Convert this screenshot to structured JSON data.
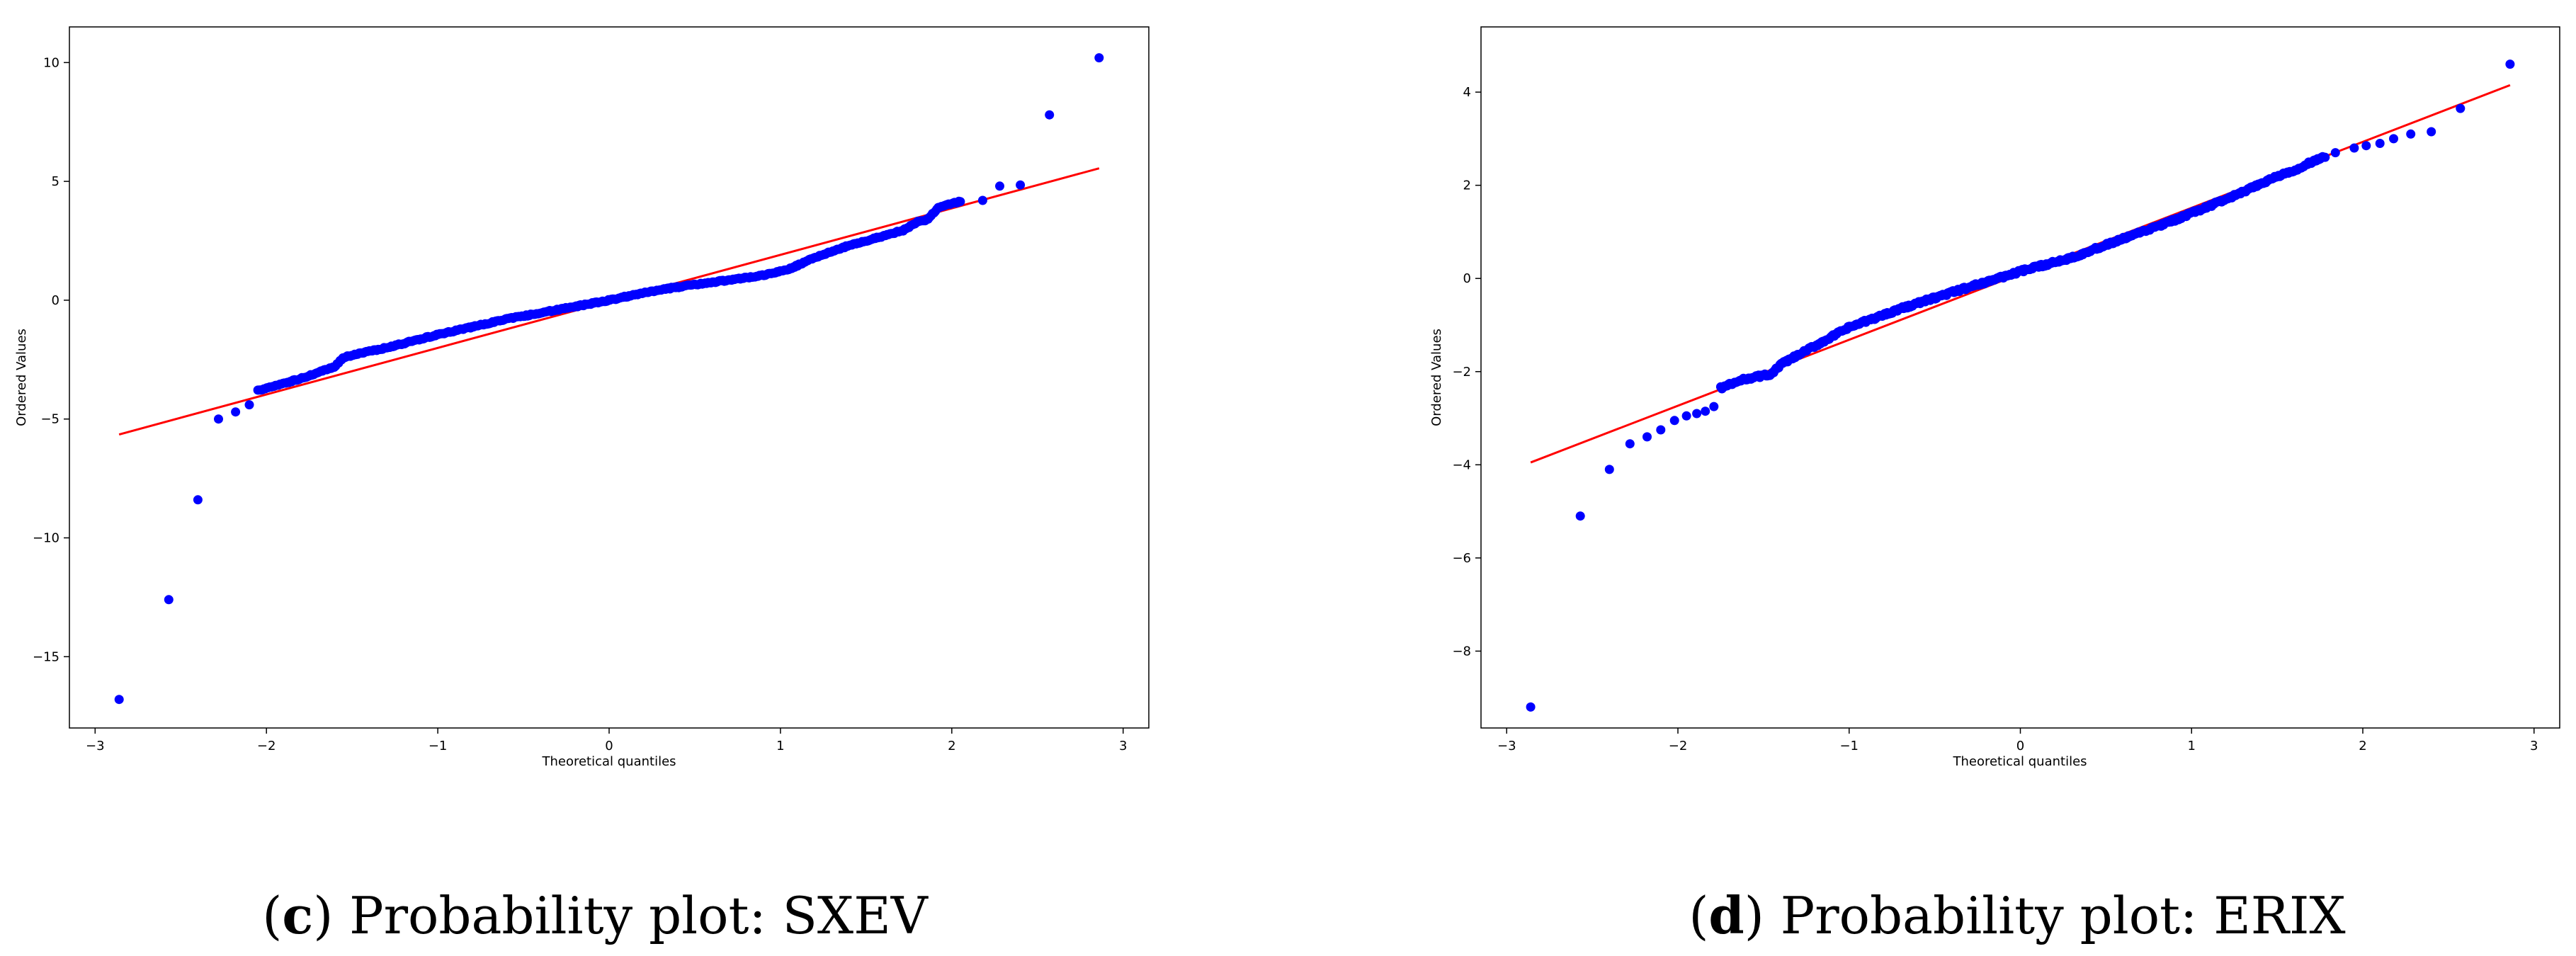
{
  "chart_data": [
    {
      "type": "scatter",
      "xlabel": "Theoretical quantiles",
      "ylabel": "Ordered Values",
      "xlim": [
        -3.15,
        3.15
      ],
      "ylim": [
        -18.0,
        11.5
      ],
      "xticks": [
        -3,
        -2,
        -1,
        0,
        1,
        2,
        3
      ],
      "xtick_labels": [
        "−3",
        "−2",
        "−1",
        "0",
        "1",
        "2",
        "3"
      ],
      "yticks": [
        -15,
        -10,
        -5,
        0,
        5,
        10
      ],
      "ytick_labels": [
        "−15",
        "−10",
        "−5",
        "0",
        "5",
        "10"
      ],
      "fit_line": {
        "x": [
          -2.86,
          2.86
        ],
        "y": [
          -5.65,
          5.55
        ],
        "color": "#ff0000"
      },
      "marker_color": "#0000ff",
      "outliers": [
        {
          "x": -2.86,
          "y": -16.8
        },
        {
          "x": -2.57,
          "y": -12.6
        },
        {
          "x": -2.4,
          "y": -8.4
        },
        {
          "x": -2.28,
          "y": -5.0
        },
        {
          "x": -2.18,
          "y": -4.7
        },
        {
          "x": -2.1,
          "y": -4.4
        },
        {
          "x": 2.18,
          "y": 4.2
        },
        {
          "x": 2.28,
          "y": 4.8
        },
        {
          "x": 2.4,
          "y": 4.85
        },
        {
          "x": 2.57,
          "y": 7.8
        },
        {
          "x": 2.86,
          "y": 10.2
        }
      ],
      "body_curve": {
        "x": [
          -2.05,
          -1.8,
          -1.6,
          -1.55,
          -1.3,
          -1.0,
          -0.6,
          -0.3,
          0.0,
          0.3,
          0.6,
          0.9,
          1.05,
          1.2,
          1.4,
          1.6,
          1.72,
          1.8,
          1.86,
          1.92,
          2.05
        ],
        "y": [
          -3.8,
          -3.3,
          -2.8,
          -2.4,
          -2.0,
          -1.45,
          -0.8,
          -0.4,
          0.0,
          0.45,
          0.75,
          1.05,
          1.3,
          1.8,
          2.3,
          2.7,
          2.95,
          3.3,
          3.4,
          3.9,
          4.15
        ]
      },
      "caption": {
        "label": "c",
        "text": "Probability plot: SXEV"
      }
    },
    {
      "type": "scatter",
      "xlabel": "Theoretical quantiles",
      "ylabel": "Ordered Values",
      "xlim": [
        -3.15,
        3.15
      ],
      "ylim": [
        -9.65,
        5.4
      ],
      "xticks": [
        -3,
        -2,
        -1,
        0,
        1,
        2,
        3
      ],
      "xtick_labels": [
        "−3",
        "−2",
        "−1",
        "0",
        "1",
        "2",
        "3"
      ],
      "yticks": [
        -8,
        -6,
        -4,
        -2,
        0,
        2,
        4
      ],
      "ytick_labels": [
        "−8",
        "−6",
        "−4",
        "−2",
        "0",
        "2",
        "4"
      ],
      "fit_line": {
        "x": [
          -2.86,
          2.86
        ],
        "y": [
          -3.95,
          4.15
        ],
        "color": "#ff0000"
      },
      "marker_color": "#0000ff",
      "outliers": [
        {
          "x": -2.86,
          "y": -9.2
        },
        {
          "x": -2.57,
          "y": -5.1
        },
        {
          "x": -2.4,
          "y": -4.1
        },
        {
          "x": -2.28,
          "y": -3.55
        },
        {
          "x": -2.18,
          "y": -3.4
        },
        {
          "x": -2.1,
          "y": -3.25
        },
        {
          "x": -2.02,
          "y": -3.05
        },
        {
          "x": -1.95,
          "y": -2.95
        },
        {
          "x": -1.89,
          "y": -2.9
        },
        {
          "x": -1.84,
          "y": -2.85
        },
        {
          "x": -1.79,
          "y": -2.75
        },
        {
          "x": 1.84,
          "y": 2.7
        },
        {
          "x": 1.95,
          "y": 2.8
        },
        {
          "x": 2.02,
          "y": 2.85
        },
        {
          "x": 2.1,
          "y": 2.9
        },
        {
          "x": 2.18,
          "y": 3.0
        },
        {
          "x": 2.28,
          "y": 3.1
        },
        {
          "x": 2.4,
          "y": 3.15
        },
        {
          "x": 2.57,
          "y": 3.65
        },
        {
          "x": 2.86,
          "y": 4.6
        }
      ],
      "body_curve": {
        "x": [
          -1.75,
          -1.6,
          -1.45,
          -1.4,
          -1.2,
          -1.0,
          -0.7,
          -0.4,
          0.0,
          0.3,
          0.6,
          0.9,
          1.1,
          1.3,
          1.5,
          1.6,
          1.7,
          1.78
        ],
        "y": [
          -2.35,
          -2.15,
          -2.05,
          -1.85,
          -1.45,
          -1.05,
          -0.65,
          -0.3,
          0.15,
          0.45,
          0.85,
          1.25,
          1.55,
          1.85,
          2.2,
          2.3,
          2.5,
          2.62
        ]
      },
      "caption": {
        "label": "d",
        "text": "Probability plot: ERIX"
      }
    }
  ]
}
